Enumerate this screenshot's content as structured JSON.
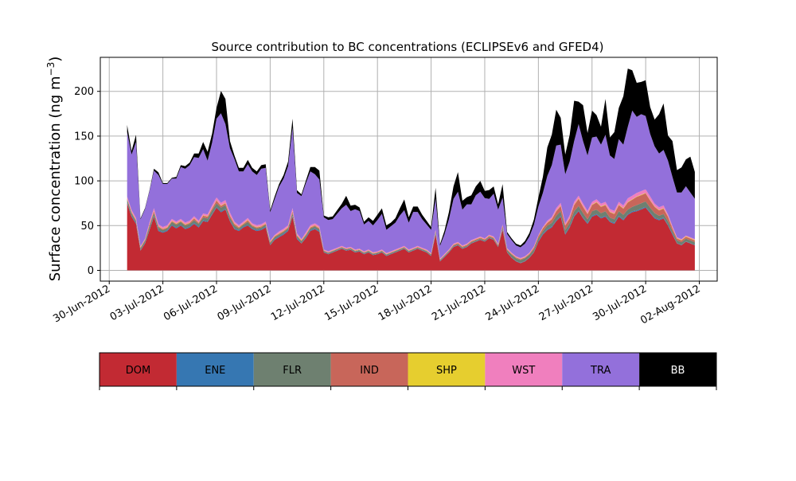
{
  "chart_data": {
    "type": "area",
    "stacked": true,
    "title": "Source contribution to BC concentrations (ECLIPSEv6 and GFED4)",
    "ylabel": "Surface concentration (ng m",
    "ylabel_sup": "−3",
    "ylabel_close": ")",
    "xlabel": "",
    "x_axis": "date",
    "xlim": [
      "2012-06-29T12:00",
      "2012-08-03T00:00"
    ],
    "ylim": [
      -12,
      238
    ],
    "yticks": [
      0,
      50,
      100,
      150,
      200
    ],
    "x_tick_labels": [
      "30-Jun-2012",
      "03-Jul-2012",
      "06-Jul-2012",
      "09-Jul-2012",
      "12-Jul-2012",
      "15-Jul-2012",
      "18-Jul-2012",
      "21-Jul-2012",
      "24-Jul-2012",
      "27-Jul-2012",
      "30-Jul-2012",
      "02-Aug-2012"
    ],
    "x_tick_dates": [
      "2012-06-30",
      "2012-07-03",
      "2012-07-06",
      "2012-07-09",
      "2012-07-12",
      "2012-07-15",
      "2012-07-18",
      "2012-07-21",
      "2012-07-24",
      "2012-07-27",
      "2012-07-30",
      "2012-08-02"
    ],
    "grid": true,
    "legend_placement": "bottom, as colorbar",
    "x": [
      "2012-07-01T00:00",
      "2012-07-01T06:00",
      "2012-07-01T12:00",
      "2012-07-01T18:00",
      "2012-07-02T00:00",
      "2012-07-02T06:00",
      "2012-07-02T12:00",
      "2012-07-02T18:00",
      "2012-07-03T00:00",
      "2012-07-03T06:00",
      "2012-07-03T12:00",
      "2012-07-03T18:00",
      "2012-07-04T00:00",
      "2012-07-04T06:00",
      "2012-07-04T12:00",
      "2012-07-04T18:00",
      "2012-07-05T00:00",
      "2012-07-05T06:00",
      "2012-07-05T12:00",
      "2012-07-05T18:00",
      "2012-07-06T00:00",
      "2012-07-06T06:00",
      "2012-07-06T12:00",
      "2012-07-06T18:00",
      "2012-07-07T00:00",
      "2012-07-07T06:00",
      "2012-07-07T12:00",
      "2012-07-07T18:00",
      "2012-07-08T00:00",
      "2012-07-08T06:00",
      "2012-07-08T12:00",
      "2012-07-08T18:00",
      "2012-07-09T00:00",
      "2012-07-09T06:00",
      "2012-07-09T12:00",
      "2012-07-09T18:00",
      "2012-07-10T00:00",
      "2012-07-10T06:00",
      "2012-07-10T12:00",
      "2012-07-10T18:00",
      "2012-07-11T00:00",
      "2012-07-11T06:00",
      "2012-07-11T12:00",
      "2012-07-11T18:00",
      "2012-07-12T00:00",
      "2012-07-12T06:00",
      "2012-07-12T12:00",
      "2012-07-12T18:00",
      "2012-07-13T00:00",
      "2012-07-13T06:00",
      "2012-07-13T12:00",
      "2012-07-13T18:00",
      "2012-07-14T00:00",
      "2012-07-14T06:00",
      "2012-07-14T12:00",
      "2012-07-14T18:00",
      "2012-07-15T00:00",
      "2012-07-15T06:00",
      "2012-07-15T12:00",
      "2012-07-15T18:00",
      "2012-07-16T00:00",
      "2012-07-16T06:00",
      "2012-07-16T12:00",
      "2012-07-16T18:00",
      "2012-07-17T00:00",
      "2012-07-17T06:00",
      "2012-07-17T12:00",
      "2012-07-17T18:00",
      "2012-07-18T00:00",
      "2012-07-18T06:00",
      "2012-07-18T12:00",
      "2012-07-18T18:00",
      "2012-07-19T00:00",
      "2012-07-19T06:00",
      "2012-07-19T12:00",
      "2012-07-19T18:00",
      "2012-07-20T00:00",
      "2012-07-20T06:00",
      "2012-07-20T12:00",
      "2012-07-20T18:00",
      "2012-07-21T00:00",
      "2012-07-21T06:00",
      "2012-07-21T12:00",
      "2012-07-21T18:00",
      "2012-07-22T00:00",
      "2012-07-22T06:00",
      "2012-07-22T12:00",
      "2012-07-22T18:00",
      "2012-07-23T00:00",
      "2012-07-23T06:00",
      "2012-07-23T12:00",
      "2012-07-23T18:00",
      "2012-07-24T00:00",
      "2012-07-24T06:00",
      "2012-07-24T12:00",
      "2012-07-24T18:00",
      "2012-07-25T00:00",
      "2012-07-25T06:00",
      "2012-07-25T12:00",
      "2012-07-25T18:00",
      "2012-07-26T00:00",
      "2012-07-26T06:00",
      "2012-07-26T12:00",
      "2012-07-26T18:00",
      "2012-07-27T00:00",
      "2012-07-27T06:00",
      "2012-07-27T12:00",
      "2012-07-27T18:00",
      "2012-07-28T00:00",
      "2012-07-28T06:00",
      "2012-07-28T12:00",
      "2012-07-28T18:00",
      "2012-07-29T00:00",
      "2012-07-29T06:00",
      "2012-07-29T12:00",
      "2012-07-29T18:00",
      "2012-07-30T00:00",
      "2012-07-30T06:00",
      "2012-07-30T12:00",
      "2012-07-30T18:00",
      "2012-07-31T00:00",
      "2012-07-31T06:00",
      "2012-07-31T12:00",
      "2012-07-31T18:00",
      "2012-08-01T00:00",
      "2012-08-01T06:00",
      "2012-08-01T12:00",
      "2012-08-01T18:00"
    ],
    "series": [
      {
        "name": "DOM",
        "color": "#c22a33",
        "values": [
          75,
          60,
          52,
          22,
          30,
          45,
          60,
          44,
          42,
          44,
          50,
          47,
          50,
          46,
          48,
          52,
          48,
          55,
          54,
          62,
          70,
          65,
          68,
          55,
          46,
          44,
          48,
          50,
          46,
          44,
          45,
          48,
          28,
          34,
          37,
          40,
          44,
          60,
          35,
          30,
          36,
          44,
          46,
          43,
          20,
          18,
          20,
          22,
          24,
          22,
          23,
          20,
          21,
          18,
          20,
          17,
          18,
          20,
          16,
          18,
          20,
          22,
          24,
          20,
          22,
          24,
          22,
          20,
          16,
          40,
          10,
          15,
          20,
          26,
          28,
          24,
          26,
          30,
          32,
          34,
          32,
          36,
          34,
          26,
          45,
          20,
          14,
          10,
          8,
          10,
          14,
          20,
          32,
          40,
          45,
          48,
          55,
          60,
          40,
          48,
          60,
          66,
          58,
          52,
          60,
          62,
          58,
          60,
          54,
          52,
          60,
          56,
          62,
          65,
          66,
          68,
          70,
          64,
          58,
          56,
          58,
          50,
          40,
          30,
          28,
          32,
          30,
          28
        ]
      },
      {
        "name": "ENE",
        "color": "#3677b2",
        "values": [
          1,
          1,
          1,
          0.5,
          1,
          1,
          1,
          1,
          1,
          1,
          1,
          1,
          1,
          1,
          1,
          1,
          1,
          1,
          1,
          1,
          1,
          1,
          1,
          1,
          1,
          1,
          1,
          1,
          1,
          1,
          1,
          1,
          0.5,
          1,
          1,
          1,
          1,
          1,
          1,
          0.5,
          1,
          1,
          1,
          1,
          0.5,
          0.5,
          0.5,
          0.5,
          0.5,
          0.5,
          0.5,
          0.5,
          0.5,
          0.5,
          0.5,
          0.5,
          0.5,
          0.5,
          0.5,
          0.5,
          0.5,
          0.5,
          0.5,
          0.5,
          0.5,
          0.5,
          0.5,
          0.5,
          0.5,
          1,
          0.5,
          0.5,
          0.5,
          0.5,
          0.5,
          0.5,
          0.5,
          0.5,
          0.5,
          0.5,
          0.5,
          0.5,
          0.5,
          0.5,
          1,
          0.5,
          0.5,
          0.5,
          0.5,
          0.5,
          0.5,
          0.5,
          1,
          1,
          1,
          1,
          1,
          1,
          1,
          1,
          1,
          1,
          1,
          1,
          1,
          1,
          1,
          1,
          1,
          1,
          1,
          1,
          1,
          1,
          1,
          1,
          1,
          1,
          1,
          1,
          1,
          1,
          1,
          0.5,
          0.5,
          0.5,
          0.5,
          0.5
        ]
      },
      {
        "name": "FLR",
        "color": "#6e8070",
        "values": [
          3,
          3,
          2,
          2,
          2,
          3,
          3,
          3,
          2,
          2,
          3,
          3,
          3,
          3,
          3,
          3,
          3,
          3,
          3,
          4,
          4,
          4,
          4,
          3,
          3,
          2,
          2,
          3,
          2,
          2,
          2,
          2,
          2,
          2,
          2,
          2,
          2,
          3,
          2,
          2,
          2,
          2,
          2,
          2,
          1,
          1,
          1,
          1,
          1,
          1,
          1,
          1,
          1,
          1,
          1,
          1,
          1,
          1,
          1,
          1,
          1,
          1,
          1,
          1,
          1,
          1,
          1,
          1,
          1,
          2,
          1,
          1,
          1,
          1,
          1,
          1,
          1,
          1,
          1,
          1,
          1,
          1,
          1,
          1,
          2,
          2,
          3,
          3,
          3,
          3,
          3,
          3,
          3,
          3,
          4,
          4,
          5,
          5,
          4,
          4,
          5,
          5,
          5,
          4,
          5,
          5,
          5,
          5,
          4,
          4,
          5,
          5,
          5,
          5,
          6,
          6,
          6,
          5,
          5,
          4,
          4,
          4,
          3,
          3,
          3,
          3,
          3,
          3
        ]
      },
      {
        "name": "IND",
        "color": "#c8665a",
        "values": [
          1,
          1,
          1,
          1,
          1,
          2,
          2,
          1,
          1,
          1,
          1,
          1,
          1,
          1,
          1,
          2,
          1,
          2,
          2,
          2,
          3,
          2,
          2,
          2,
          2,
          1,
          1,
          2,
          1,
          1,
          1,
          1,
          1,
          1,
          1,
          1,
          1,
          2,
          1,
          1,
          1,
          1,
          1,
          1,
          0.5,
          0.5,
          0.5,
          0.5,
          0.5,
          0.5,
          0.5,
          0.5,
          0.5,
          0.5,
          0.5,
          0.5,
          0.5,
          0.5,
          0.5,
          0.5,
          0.5,
          0.5,
          0.5,
          0.5,
          0.5,
          0.5,
          0.5,
          0.5,
          0.5,
          1,
          0.5,
          0.5,
          0.5,
          1,
          1,
          1,
          1,
          1,
          1,
          1,
          1,
          1,
          1,
          1,
          2,
          1,
          1,
          1,
          1,
          1,
          1,
          2,
          2,
          3,
          3,
          4,
          5,
          6,
          5,
          5,
          7,
          8,
          7,
          6,
          7,
          8,
          7,
          7,
          6,
          6,
          7,
          7,
          8,
          8,
          9,
          9,
          9,
          8,
          7,
          6,
          6,
          5,
          3,
          2,
          2,
          2,
          2,
          2
        ]
      },
      {
        "name": "SHP",
        "color": "#e6ce2f",
        "values": [
          0.5,
          0.5,
          0.5,
          0.5,
          0.5,
          0.5,
          0.5,
          0.5,
          0.5,
          0.5,
          0.5,
          0.5,
          0.5,
          0.5,
          0.5,
          0.5,
          0.5,
          0.5,
          0.5,
          0.5,
          0.5,
          0.5,
          0.5,
          0.5,
          0.5,
          0.5,
          0.5,
          0.5,
          0.5,
          0.5,
          0.5,
          0.5,
          0.5,
          0.5,
          0.5,
          0.5,
          0.5,
          0.5,
          0.5,
          0.5,
          0.5,
          0.5,
          0.5,
          0.5,
          0.3,
          0.3,
          0.3,
          0.3,
          0.3,
          0.3,
          0.3,
          0.3,
          0.3,
          0.3,
          0.3,
          0.3,
          0.3,
          0.3,
          0.3,
          0.3,
          0.3,
          0.3,
          0.3,
          0.3,
          0.3,
          0.3,
          0.3,
          0.3,
          0.3,
          0.3,
          0.3,
          0.3,
          0.3,
          0.3,
          0.3,
          0.3,
          0.3,
          0.3,
          0.3,
          0.3,
          0.3,
          0.3,
          0.3,
          0.3,
          0.3,
          0.3,
          0.3,
          0.3,
          0.3,
          0.3,
          0.3,
          0.3,
          0.5,
          0.5,
          0.5,
          0.5,
          0.5,
          0.5,
          0.5,
          0.5,
          0.5,
          0.5,
          0.5,
          0.5,
          0.5,
          0.5,
          0.5,
          0.5,
          0.5,
          0.5,
          0.5,
          0.5,
          0.5,
          0.5,
          0.5,
          0.5,
          0.5,
          0.5,
          0.5,
          0.5,
          0.5,
          0.5,
          0.5,
          0.5,
          0.5,
          0.5,
          0.5,
          0.5
        ]
      },
      {
        "name": "WST",
        "color": "#f07fbe",
        "values": [
          2,
          2,
          2,
          1,
          1,
          2,
          3,
          2,
          2,
          2,
          2,
          2,
          2,
          2,
          2,
          2,
          2,
          2,
          2,
          3,
          3,
          3,
          3,
          3,
          2,
          2,
          2,
          2,
          2,
          2,
          2,
          2,
          1,
          1,
          2,
          2,
          2,
          3,
          2,
          1,
          2,
          2,
          2,
          2,
          1,
          1,
          1,
          1,
          1,
          1,
          1,
          1,
          1,
          1,
          1,
          1,
          1,
          1,
          1,
          1,
          1,
          1,
          1,
          1,
          1,
          1,
          1,
          1,
          1,
          1,
          1,
          1,
          1,
          1,
          1,
          1,
          1,
          1,
          1,
          1,
          1,
          1,
          1,
          1,
          1,
          1,
          1,
          1,
          1,
          1,
          1,
          1,
          1,
          1,
          2,
          2,
          3,
          3,
          2,
          3,
          3,
          3,
          3,
          3,
          3,
          3,
          3,
          3,
          3,
          3,
          3,
          3,
          4,
          4,
          4,
          4,
          4,
          4,
          3,
          3,
          3,
          2,
          2,
          1,
          1,
          1,
          1,
          1
        ]
      },
      {
        "name": "TRA",
        "color": "#9370db",
        "values": [
          72,
          62,
          85,
          30,
          33,
          35,
          42,
          55,
          48,
          46,
          45,
          48,
          58,
          60,
          62,
          66,
          70,
          72,
          60,
          70,
          88,
          100,
          85,
          72,
          70,
          60,
          56,
          60,
          58,
          56,
          62,
          60,
          32,
          40,
          50,
          56,
          66,
          90,
          45,
          48,
          55,
          60,
          55,
          52,
          36,
          35,
          34,
          38,
          42,
          48,
          40,
          45,
          42,
          30,
          32,
          30,
          35,
          40,
          26,
          28,
          30,
          36,
          40,
          30,
          40,
          38,
          32,
          28,
          26,
          35,
          14,
          22,
          34,
          50,
          56,
          40,
          44,
          40,
          48,
          50,
          45,
          40,
          48,
          38,
          30,
          16,
          14,
          12,
          12,
          14,
          18,
          24,
          32,
          38,
          50,
          58,
          70,
          65,
          55,
          60,
          68,
          80,
          70,
          62,
          72,
          70,
          66,
          75,
          60,
          58,
          70,
          68,
          80,
          95,
          85,
          86,
          82,
          70,
          64,
          60,
          62,
          60,
          55,
          50,
          52,
          55,
          50,
          45
        ]
      },
      {
        "name": "BB",
        "color": "#000000",
        "values": [
          8,
          4,
          8,
          1,
          1,
          1,
          2,
          3,
          1,
          1,
          1,
          2,
          2,
          3,
          3,
          4,
          5,
          8,
          10,
          10,
          12,
          25,
          28,
          8,
          4,
          4,
          4,
          5,
          4,
          4,
          4,
          4,
          2,
          3,
          3,
          4,
          5,
          10,
          3,
          2,
          3,
          5,
          8,
          10,
          2,
          3,
          3,
          4,
          5,
          10,
          6,
          5,
          4,
          3,
          4,
          5,
          6,
          6,
          5,
          4,
          5,
          8,
          12,
          6,
          6,
          6,
          5,
          4,
          3,
          12,
          2,
          4,
          8,
          14,
          22,
          10,
          8,
          10,
          10,
          12,
          8,
          10,
          8,
          6,
          15,
          2,
          2,
          2,
          2,
          3,
          4,
          6,
          10,
          18,
          32,
          34,
          40,
          30,
          22,
          30,
          45,
          25,
          40,
          25,
          30,
          24,
          20,
          40,
          20,
          30,
          35,
          54,
          65,
          45,
          38,
          36,
          40,
          30,
          30,
          44,
          52,
          28,
          40,
          25,
          28,
          30,
          40,
          30
        ]
      }
    ]
  }
}
